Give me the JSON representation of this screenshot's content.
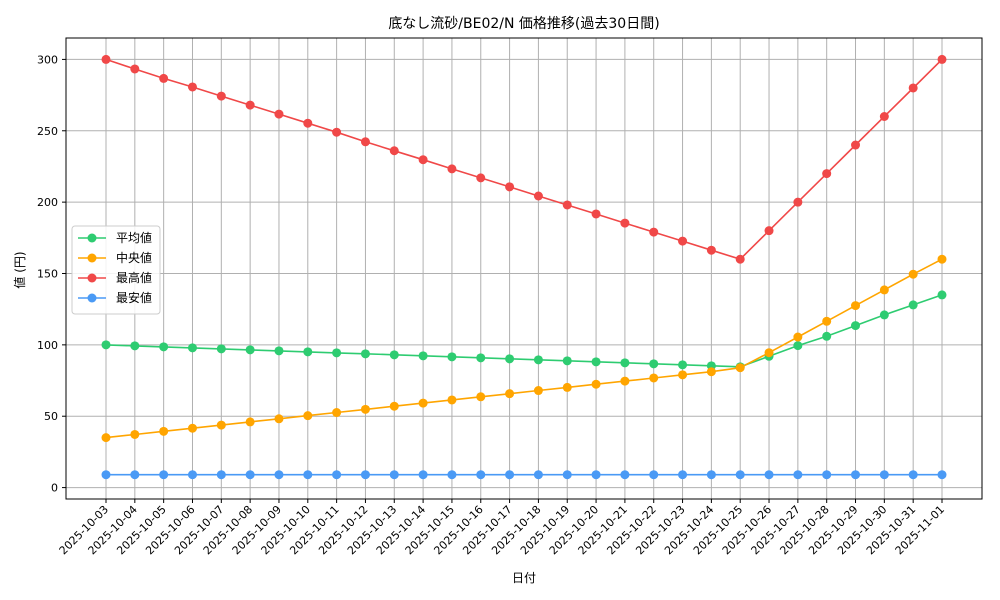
{
  "chart_data": {
    "type": "line",
    "title": "底なし流砂/BE02/N 価格推移(過去30日間)",
    "xlabel": "日付",
    "ylabel": "値 (円)",
    "ylim": [
      -8,
      315
    ],
    "yticks": [
      0,
      50,
      100,
      150,
      200,
      250,
      300
    ],
    "grid": true,
    "legend_position": "center-left",
    "categories": [
      "2025-10-03",
      "2025-10-04",
      "2025-10-05",
      "2025-10-06",
      "2025-10-07",
      "2025-10-08",
      "2025-10-09",
      "2025-10-10",
      "2025-10-11",
      "2025-10-12",
      "2025-10-13",
      "2025-10-14",
      "2025-10-15",
      "2025-10-16",
      "2025-10-17",
      "2025-10-18",
      "2025-10-19",
      "2025-10-20",
      "2025-10-21",
      "2025-10-22",
      "2025-10-23",
      "2025-10-24",
      "2025-10-25",
      "2025-10-26",
      "2025-10-27",
      "2025-10-28",
      "2025-10-29",
      "2025-10-30",
      "2025-10-31",
      "2025-11-01"
    ],
    "series": [
      {
        "name": "平均値",
        "color": "#2ecc71",
        "values": [
          100,
          99.3,
          98.6,
          97.9,
          97.2,
          96.5,
          95.8,
          95.1,
          94.4,
          93.7,
          93.0,
          92.3,
          91.6,
          90.9,
          90.2,
          89.5,
          88.8,
          88.1,
          87.4,
          86.7,
          86.0,
          85.3,
          84.6,
          92.0,
          99.5,
          106.0,
          113.5,
          121.0,
          128.0,
          135.0
        ]
      },
      {
        "name": "中央値",
        "color": "#ffa500",
        "values": [
          35,
          37.2,
          39.4,
          41.6,
          43.8,
          46.0,
          48.2,
          50.4,
          52.6,
          54.8,
          57.0,
          59.2,
          61.4,
          63.6,
          65.8,
          68.0,
          70.2,
          72.4,
          74.6,
          76.8,
          79.0,
          81.2,
          84.0,
          94.5,
          105.5,
          116.5,
          127.5,
          138.5,
          149.5,
          160.0
        ]
      },
      {
        "name": "最高値",
        "color": "#f04848",
        "values": [
          300,
          293.3,
          286.7,
          280.7,
          274.3,
          268.0,
          261.7,
          255.3,
          249.0,
          242.3,
          236.0,
          229.7,
          223.3,
          217.0,
          210.7,
          204.3,
          198.0,
          191.7,
          185.3,
          179.0,
          172.7,
          166.3,
          160.0,
          180.0,
          200.0,
          220.0,
          240.0,
          260.0,
          280.0,
          300.0
        ]
      },
      {
        "name": "最安値",
        "color": "#4a9af5",
        "values": [
          9,
          9,
          9,
          9,
          9,
          9,
          9,
          9,
          9,
          9,
          9,
          9,
          9,
          9,
          9,
          9,
          9,
          9,
          9,
          9,
          9,
          9,
          9,
          9,
          9,
          9,
          9,
          9,
          9,
          9
        ]
      }
    ]
  }
}
